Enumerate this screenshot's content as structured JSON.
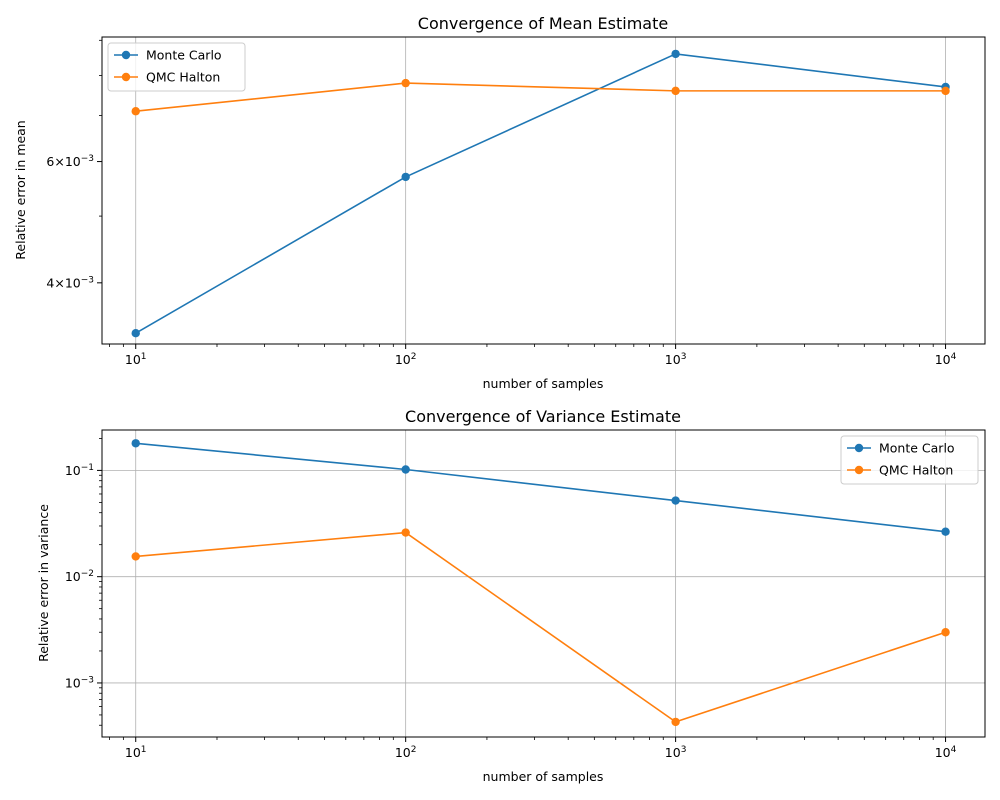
{
  "chart_data": [
    {
      "type": "line",
      "title": "Convergence of Mean Estimate",
      "xlabel": "number of samples",
      "ylabel": "Relative error in mean",
      "xscale": "log",
      "yscale": "log",
      "x": [
        10,
        100,
        1000,
        10000
      ],
      "xlim": [
        7.5,
        14000
      ],
      "ylim": [
        0.00326,
        0.0091
      ],
      "xticks": [
        {
          "value": 10,
          "label": "10^1"
        },
        {
          "value": 100,
          "label": "10^2"
        },
        {
          "value": 1000,
          "label": "10^3"
        },
        {
          "value": 10000,
          "label": "10^4"
        }
      ],
      "yticks": [
        {
          "value": 0.004,
          "label": "4×10^−3"
        },
        {
          "value": 0.006,
          "label": "6×10^−3"
        }
      ],
      "grid": "x-major only",
      "legend_position": "upper left",
      "series": [
        {
          "name": "Monte Carlo",
          "color": "#1f77b4",
          "values": [
            0.00338,
            0.0057,
            0.0086,
            0.0077
          ]
        },
        {
          "name": "QMC Halton",
          "color": "#ff7f0e",
          "values": [
            0.0071,
            0.0078,
            0.0076,
            0.0076
          ]
        }
      ]
    },
    {
      "type": "line",
      "title": "Convergence of Variance Estimate",
      "xlabel": "number of samples",
      "ylabel": "Relative error in variance",
      "xscale": "log",
      "yscale": "log",
      "x": [
        10,
        100,
        1000,
        10000
      ],
      "xlim": [
        7.5,
        14000
      ],
      "ylim": [
        0.00031,
        0.24
      ],
      "xticks": [
        {
          "value": 10,
          "label": "10^1"
        },
        {
          "value": 100,
          "label": "10^2"
        },
        {
          "value": 1000,
          "label": "10^3"
        },
        {
          "value": 10000,
          "label": "10^4"
        }
      ],
      "yticks": [
        {
          "value": 0.001,
          "label": "10^−3"
        },
        {
          "value": 0.01,
          "label": "10^−2"
        },
        {
          "value": 0.1,
          "label": "10^−1"
        }
      ],
      "grid": "both major",
      "legend_position": "upper right",
      "series": [
        {
          "name": "Monte Carlo",
          "color": "#1f77b4",
          "values": [
            0.18,
            0.102,
            0.052,
            0.0265
          ]
        },
        {
          "name": "QMC Halton",
          "color": "#ff7f0e",
          "values": [
            0.0155,
            0.026,
            0.00043,
            0.003
          ]
        }
      ]
    }
  ]
}
